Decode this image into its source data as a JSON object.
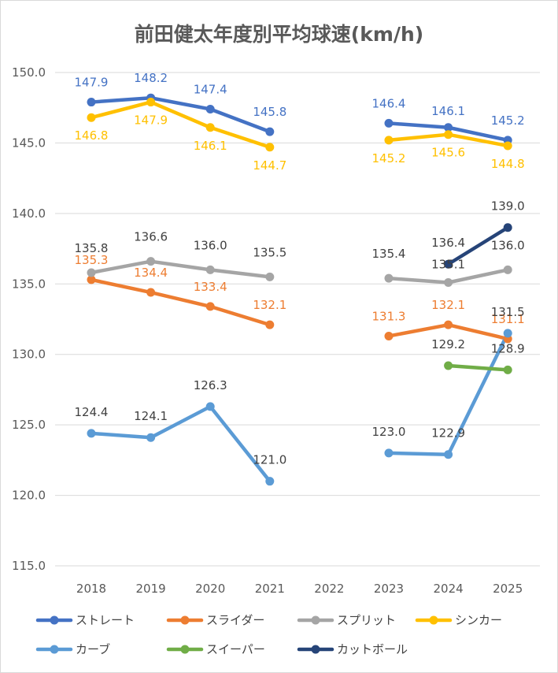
{
  "chart_data": {
    "type": "line",
    "title": "前田健太年度別平均球速(km/h)",
    "xlabel": "",
    "ylabel": "",
    "categories": [
      "2018",
      "2019",
      "2020",
      "2021",
      "2022",
      "2023",
      "2024",
      "2025"
    ],
    "ylim": [
      115.0,
      150.0
    ],
    "yticks": [
      "115.0",
      "120.0",
      "125.0",
      "130.0",
      "135.0",
      "140.0",
      "145.0",
      "150.0"
    ],
    "grid": true,
    "legend_position": "bottom",
    "series": [
      {
        "name": "ストレート",
        "color": "#4472C4",
        "values": [
          147.9,
          148.2,
          147.4,
          145.8,
          null,
          146.4,
          146.1,
          145.2
        ],
        "labels": [
          "147.9",
          "148.2",
          "147.4",
          "145.8",
          "",
          "146.4",
          "146.1",
          "145.2"
        ]
      },
      {
        "name": "スライダー",
        "color": "#ED7D31",
        "values": [
          135.3,
          134.4,
          133.4,
          132.1,
          null,
          131.3,
          132.1,
          131.1
        ],
        "labels": [
          "135.3",
          "134.4",
          "133.4",
          "132.1",
          "",
          "131.3",
          "132.1",
          "131.1"
        ]
      },
      {
        "name": "スプリット",
        "color": "#A5A5A5",
        "values": [
          135.8,
          136.6,
          136.0,
          135.5,
          null,
          135.4,
          135.1,
          136.0
        ],
        "labels": [
          "135.8",
          "136.6",
          "136.0",
          "135.5",
          "",
          "135.4",
          "135.1",
          "136.0"
        ]
      },
      {
        "name": "シンカー",
        "color": "#FFC000",
        "values": [
          146.8,
          147.9,
          146.1,
          144.7,
          null,
          145.2,
          145.6,
          144.8
        ],
        "labels": [
          "146.8",
          "147.9",
          "146.1",
          "144.7",
          "",
          "145.2",
          "145.6",
          "144.8"
        ]
      },
      {
        "name": "カーブ",
        "color": "#5B9BD5",
        "values": [
          124.4,
          124.1,
          126.3,
          121.0,
          null,
          123.0,
          122.9,
          131.5
        ],
        "labels": [
          "124.4",
          "124.1",
          "126.3",
          "121.0",
          "",
          "123.0",
          "122.9",
          "131.5"
        ]
      },
      {
        "name": "スイーパー",
        "color": "#70AD47",
        "values": [
          null,
          null,
          null,
          null,
          null,
          null,
          129.2,
          128.9
        ],
        "labels": [
          "",
          "",
          "",
          "",
          "",
          "",
          "129.2",
          "128.9"
        ]
      },
      {
        "name": "カットボール",
        "color": "#264478",
        "values": [
          null,
          null,
          null,
          null,
          null,
          null,
          136.4,
          139.0
        ],
        "labels": [
          "",
          "",
          "",
          "",
          "",
          "",
          "136.4",
          "139.0"
        ]
      }
    ]
  }
}
